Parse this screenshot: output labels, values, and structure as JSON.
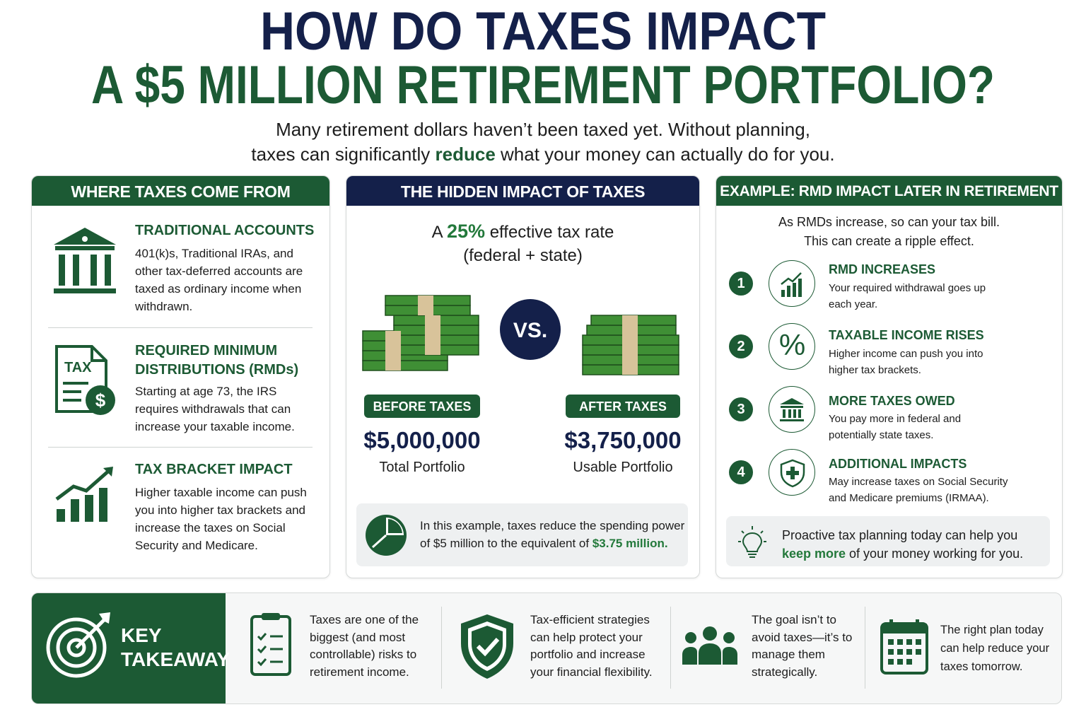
{
  "header": {
    "title_line1": "HOW DO TAXES IMPACT",
    "title_line2": "A $5 MILLION RETIREMENT PORTFOLIO?",
    "subtitle_line1": "Many retirement dollars haven’t been taxed yet. Without planning,",
    "subtitle_line2_before": "taxes can significantly ",
    "subtitle_line2_highlight": "reduce",
    "subtitle_line2_after": " what your money can actually do for you."
  },
  "left_panel": {
    "title": "WHERE TAXES COME FROM",
    "items": [
      {
        "heading": "TRADITIONAL ACCOUNTS",
        "text": "401(k)s, Traditional IRAs, and other tax-deferred accounts are taxed as ordinary income when withdrawn."
      },
      {
        "heading": "REQUIRED MINIMUM DISTRIBUTIONS (RMDs)",
        "text": "Starting at age 73, the IRS requires withdrawals that can increase your taxable income.",
        "icon_text": "TAX",
        "icon_symbol": "$"
      },
      {
        "heading": "TAX BRACKET IMPACT",
        "text": "Higher taxable income can push you into higher tax brackets and increase the taxes on Social Security and Medicare."
      }
    ]
  },
  "middle_panel": {
    "title": "THE HIDDEN IMPACT OF TAXES",
    "rate_before": "A ",
    "rate_value": "25%",
    "rate_after": " effective tax rate",
    "rate_note": "(federal + state)",
    "vs": "VS.",
    "before": {
      "label": "BEFORE TAXES",
      "amount": "$5,000,000",
      "caption": "Total Portfolio"
    },
    "after": {
      "label": "AFTER TAXES",
      "amount": "$3,750,000",
      "caption": "Usable Portfolio"
    },
    "note_before": "In this example, taxes reduce the spending power of $5 million to the equivalent of ",
    "note_highlight": "$3.75 million."
  },
  "right_panel": {
    "title": "EXAMPLE: RMD IMPACT LATER IN RETIREMENT",
    "intro_line1": "As RMDs increase, so can your tax bill.",
    "intro_line2": "This can create a ripple effect.",
    "steps": [
      {
        "number": 1,
        "heading": "RMD INCREASES",
        "text": "Your required withdrawal goes up each year."
      },
      {
        "number": 2,
        "heading": "TAXABLE INCOME RISES",
        "text": "Higher income can push you into higher tax brackets.",
        "icon_text": "%"
      },
      {
        "number": 3,
        "heading": "MORE TAXES OWED",
        "text": "You pay more in federal and potentially state taxes."
      },
      {
        "number": 4,
        "heading": "ADDITIONAL IMPACTS",
        "text": "May increase taxes on Social Security and Medicare premiums (IRMAA)."
      }
    ],
    "footer_before": "Proactive tax planning today can help you ",
    "footer_highlight": "keep more",
    "footer_after": " of your money working for you."
  },
  "takeaway": {
    "label_line1": "KEY",
    "label_line2": "TAKEAWAY",
    "points": [
      "Taxes are one of the biggest (and most controllable) risks to retirement income.",
      "Tax-efficient strategies can help protect your portfolio and increase your financial flexibility.",
      "The goal isn’t to avoid taxes—it’s to manage them strategically.",
      "The right plan today can help reduce your taxes tomorrow."
    ]
  }
}
